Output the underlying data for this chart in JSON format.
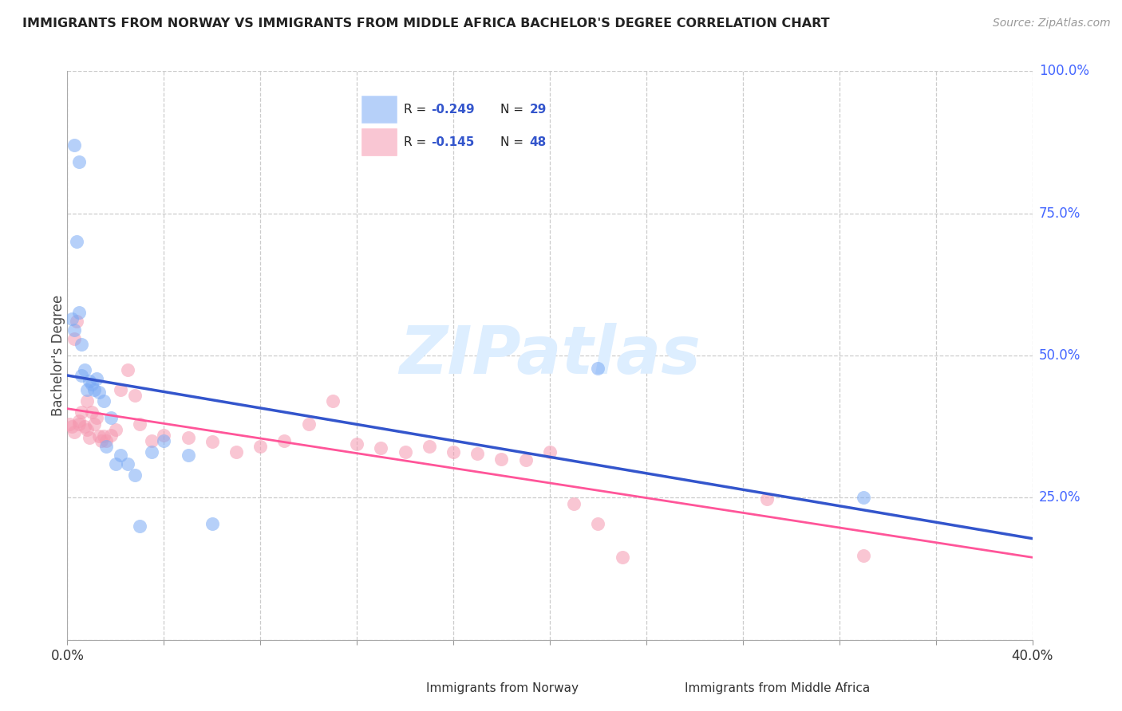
{
  "title": "IMMIGRANTS FROM NORWAY VS IMMIGRANTS FROM MIDDLE AFRICA BACHELOR'S DEGREE CORRELATION CHART",
  "source": "Source: ZipAtlas.com",
  "ylabel": "Bachelor's Degree",
  "norway_R": -0.249,
  "norway_N": 29,
  "africa_R": -0.145,
  "africa_N": 48,
  "norway_color": "#7aaaf5",
  "africa_color": "#f598b0",
  "norway_line_color": "#3355cc",
  "africa_line_color": "#ff5599",
  "watermark_text": "ZIPatlas",
  "watermark_color": "#ddeeff",
  "xmin": 0.0,
  "xmax": 0.4,
  "ymin": 0.0,
  "ymax": 1.0,
  "yticks": [
    0.0,
    0.25,
    0.5,
    0.75,
    1.0
  ],
  "right_ytick_labels": [
    "",
    "25.0%",
    "50.0%",
    "75.0%",
    "100.0%"
  ],
  "xticks": [
    0.0,
    0.04,
    0.08,
    0.12,
    0.16,
    0.2,
    0.24,
    0.28,
    0.32,
    0.36,
    0.4
  ],
  "norway_x": [
    0.002,
    0.003,
    0.003,
    0.004,
    0.005,
    0.005,
    0.006,
    0.006,
    0.007,
    0.008,
    0.009,
    0.01,
    0.011,
    0.012,
    0.013,
    0.015,
    0.016,
    0.018,
    0.02,
    0.022,
    0.025,
    0.028,
    0.03,
    0.035,
    0.04,
    0.05,
    0.06,
    0.22,
    0.33
  ],
  "norway_y": [
    0.565,
    0.545,
    0.87,
    0.7,
    0.84,
    0.575,
    0.52,
    0.465,
    0.475,
    0.44,
    0.455,
    0.45,
    0.44,
    0.46,
    0.435,
    0.42,
    0.34,
    0.39,
    0.31,
    0.325,
    0.31,
    0.29,
    0.2,
    0.33,
    0.35,
    0.325,
    0.205,
    0.478,
    0.25
  ],
  "africa_x": [
    0.001,
    0.002,
    0.003,
    0.003,
    0.004,
    0.005,
    0.005,
    0.006,
    0.007,
    0.008,
    0.008,
    0.009,
    0.01,
    0.011,
    0.012,
    0.013,
    0.014,
    0.015,
    0.016,
    0.018,
    0.02,
    0.022,
    0.025,
    0.028,
    0.03,
    0.035,
    0.04,
    0.05,
    0.06,
    0.07,
    0.08,
    0.09,
    0.1,
    0.11,
    0.12,
    0.13,
    0.14,
    0.15,
    0.16,
    0.17,
    0.18,
    0.19,
    0.2,
    0.21,
    0.22,
    0.23,
    0.29,
    0.33
  ],
  "africa_y": [
    0.38,
    0.375,
    0.365,
    0.53,
    0.56,
    0.38,
    0.385,
    0.4,
    0.375,
    0.37,
    0.42,
    0.355,
    0.4,
    0.38,
    0.39,
    0.358,
    0.35,
    0.358,
    0.35,
    0.36,
    0.37,
    0.44,
    0.475,
    0.43,
    0.38,
    0.35,
    0.36,
    0.355,
    0.348,
    0.33,
    0.34,
    0.35,
    0.38,
    0.42,
    0.345,
    0.338,
    0.33,
    0.34,
    0.33,
    0.328,
    0.318,
    0.316,
    0.33,
    0.24,
    0.205,
    0.145,
    0.248,
    0.148
  ]
}
